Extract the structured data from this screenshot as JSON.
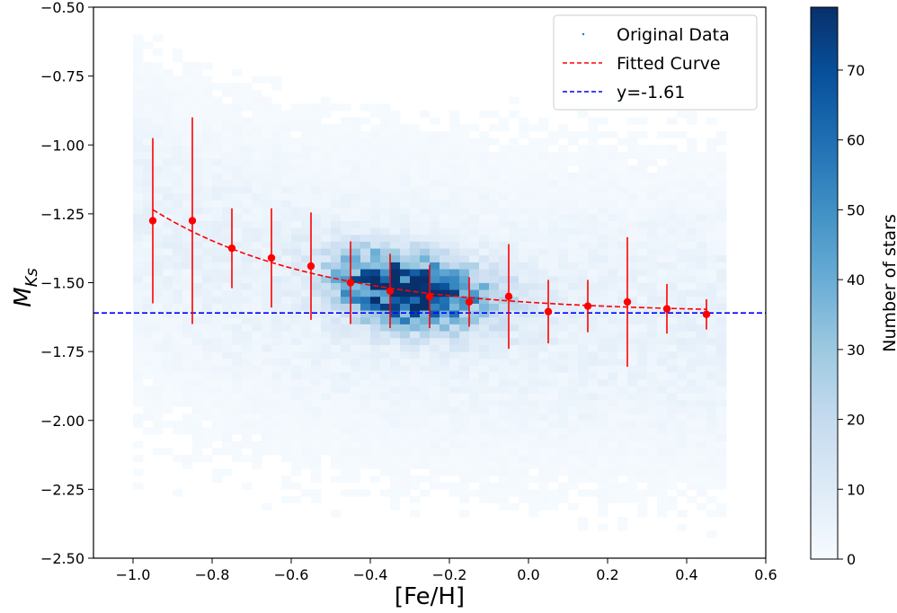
{
  "chart_data": {
    "type": "heatmap",
    "subtype": "2d-histogram with binned means and fitted curve",
    "xlabel": "[Fe/H]",
    "ylabel": "M",
    "ylabel_sub": "Ks",
    "xlim": [
      -1.1,
      0.6
    ],
    "ylim": [
      -2.5,
      -0.5
    ],
    "x_ticks": [
      -1.0,
      -0.8,
      -0.6,
      -0.4,
      -0.2,
      0.0,
      0.2,
      0.4,
      0.6
    ],
    "x_tick_labels": [
      "−1.0",
      "−0.8",
      "−0.6",
      "−0.4",
      "−0.2",
      "0.0",
      "0.2",
      "0.4",
      "0.6"
    ],
    "y_ticks": [
      -0.5,
      -0.75,
      -1.0,
      -1.25,
      -1.5,
      -1.75,
      -2.0,
      -2.25,
      -2.5
    ],
    "y_tick_labels": [
      "−0.50",
      "−0.75",
      "−1.00",
      "−1.25",
      "−1.50",
      "−1.75",
      "−2.00",
      "−2.25",
      "−2.50"
    ],
    "colorbar": {
      "label": "Number of stars",
      "range": [
        0,
        79
      ],
      "ticks": [
        0,
        10,
        20,
        30,
        40,
        50,
        60,
        70
      ],
      "tick_labels": [
        "0",
        "10",
        "20",
        "30",
        "40",
        "50",
        "60",
        "70"
      ],
      "colormap": "Blues"
    },
    "histogram": {
      "x_range": [
        -1.0,
        0.5
      ],
      "y_range": [
        -2.5,
        -0.5
      ],
      "description": "counts peak near [Fe/H] -0.35, M_Ks -1.5 (~79 stars)"
    },
    "binned_means": {
      "x": [
        -0.95,
        -0.85,
        -0.75,
        -0.65,
        -0.55,
        -0.45,
        -0.35,
        -0.25,
        -0.15,
        -0.05,
        0.05,
        0.15,
        0.25,
        0.35,
        0.45
      ],
      "y": [
        -1.275,
        -1.275,
        -1.375,
        -1.41,
        -1.44,
        -1.5,
        -1.53,
        -1.55,
        -1.57,
        -1.55,
        -1.605,
        -1.585,
        -1.57,
        -1.595,
        -1.615
      ],
      "yerr": [
        0.3,
        0.375,
        0.145,
        0.18,
        0.195,
        0.15,
        0.135,
        0.115,
        0.09,
        0.19,
        0.115,
        0.095,
        0.235,
        0.09,
        0.055
      ],
      "color": "#ff0000"
    },
    "fitted_curve": {
      "formula": "y = -1.61 + 0.375 * exp(-(x + 0.95) / 0.42)",
      "x_start": -0.95,
      "x_end": 0.45,
      "color": "#ff0000",
      "style": "dashed"
    },
    "hline": {
      "y": -1.61,
      "color": "#0000ff",
      "style": "dashed"
    },
    "legend": {
      "position": "top-right",
      "entries": [
        {
          "label": "Original Data",
          "marker": "dot",
          "color": "#1f77b4"
        },
        {
          "label": "Fitted Curve",
          "marker": "dashed-line",
          "color": "#ff0000"
        },
        {
          "label": "y=-1.61",
          "marker": "dashed-line",
          "color": "#0000ff"
        }
      ]
    }
  }
}
